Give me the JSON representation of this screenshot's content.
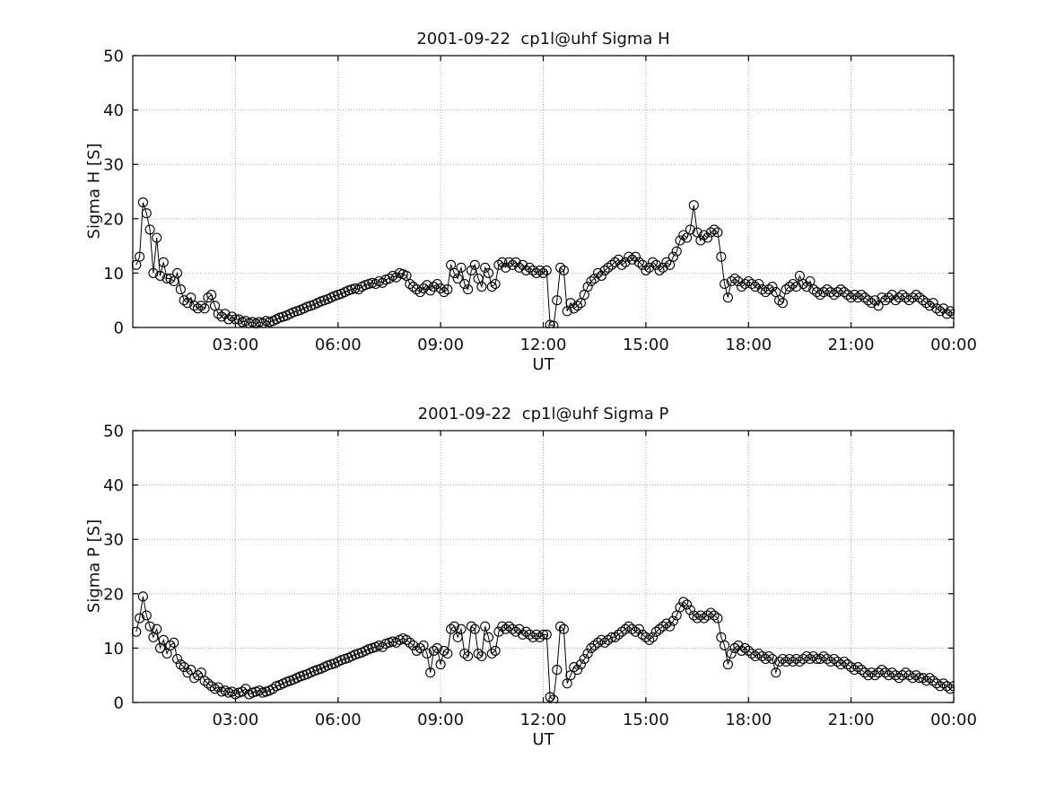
{
  "styles": {
    "background": "#ffffff",
    "grid_color": "#999999",
    "axis_color": "#000000",
    "marker_color": "#000000",
    "text_color": "#111111"
  },
  "chart_data": [
    {
      "id": "sigma-h",
      "type": "scatter",
      "title": "2001-09-22  cp1l@uhf Sigma H",
      "xlabel": "UT",
      "ylabel": "Sigma H [S]",
      "xlim": [
        0,
        24
      ],
      "ylim": [
        0,
        50
      ],
      "xticks": [
        3,
        6,
        9,
        12,
        15,
        18,
        21,
        24
      ],
      "xtick_labels": [
        "03:00",
        "06:00",
        "09:00",
        "12:00",
        "15:00",
        "18:00",
        "21:00",
        "00:00"
      ],
      "yticks": [
        0,
        10,
        20,
        30,
        40,
        50
      ],
      "grid": true,
      "legend": "none",
      "marker": "open-circle",
      "x_start": 0.1,
      "x_step": 0.1,
      "values": [
        11.5,
        13.0,
        23.0,
        21.0,
        18.0,
        10.0,
        16.5,
        9.5,
        12.0,
        9.0,
        9.0,
        8.5,
        10.0,
        7.0,
        5.0,
        4.5,
        5.5,
        4.0,
        3.5,
        4.0,
        3.5,
        5.5,
        6.0,
        4.0,
        2.5,
        2.0,
        2.5,
        1.5,
        2.0,
        1.5,
        1.5,
        1.0,
        1.2,
        0.8,
        1.0,
        0.7,
        1.0,
        0.8,
        1.2,
        1.0,
        1.2,
        1.5,
        1.8,
        2.0,
        2.2,
        2.5,
        2.8,
        3.0,
        3.2,
        3.5,
        3.8,
        4.0,
        4.2,
        4.5,
        4.8,
        5.0,
        5.2,
        5.5,
        5.8,
        6.0,
        6.2,
        6.5,
        6.8,
        7.0,
        7.2,
        7.0,
        7.5,
        7.8,
        8.0,
        8.2,
        8.0,
        8.5,
        8.2,
        8.8,
        9.0,
        9.5,
        9.2,
        10.0,
        9.8,
        9.5,
        8.0,
        7.5,
        7.0,
        6.5,
        7.2,
        7.8,
        6.8,
        7.5,
        8.0,
        7.2,
        6.5,
        7.0,
        11.5,
        10.0,
        9.0,
        11.0,
        8.0,
        7.0,
        10.5,
        11.5,
        9.0,
        7.5,
        11.0,
        10.0,
        7.5,
        8.0,
        11.5,
        12.0,
        11.0,
        12.0,
        11.5,
        12.0,
        11.0,
        11.5,
        10.5,
        11.0,
        10.5,
        10.0,
        10.5,
        10.0,
        10.5,
        0.5,
        0.3,
        5.0,
        11.0,
        10.5,
        3.0,
        4.5,
        3.5,
        4.0,
        4.5,
        6.0,
        7.5,
        8.5,
        9.0,
        10.0,
        9.5,
        10.5,
        11.0,
        11.5,
        12.0,
        12.5,
        11.5,
        12.0,
        13.0,
        12.5,
        13.0,
        12.0,
        11.5,
        10.5,
        11.0,
        12.0,
        11.5,
        10.5,
        11.0,
        12.0,
        11.5,
        13.0,
        14.0,
        16.0,
        17.0,
        16.5,
        18.0,
        22.5,
        17.5,
        16.0,
        17.0,
        16.5,
        17.5,
        18.0,
        17.5,
        13.0,
        8.0,
        5.5,
        8.5,
        9.0,
        8.5,
        7.5,
        8.0,
        8.5,
        8.0,
        7.5,
        8.0,
        7.0,
        6.5,
        7.0,
        7.5,
        6.5,
        5.0,
        4.5,
        7.0,
        7.5,
        8.0,
        7.5,
        9.5,
        8.0,
        7.5,
        8.5,
        7.0,
        6.5,
        6.0,
        6.5,
        7.0,
        6.5,
        6.0,
        6.5,
        7.0,
        6.5,
        6.0,
        5.5,
        6.0,
        5.5,
        6.0,
        5.5,
        5.0,
        4.5,
        5.0,
        4.0,
        5.5,
        5.0,
        5.5,
        6.0,
        5.0,
        5.5,
        6.0,
        5.5,
        5.0,
        5.5,
        6.0,
        5.5,
        5.0,
        4.5,
        4.0,
        4.5,
        3.5,
        3.0,
        3.5,
        2.5,
        3.0,
        2.5
      ]
    },
    {
      "id": "sigma-p",
      "type": "scatter",
      "title": "2001-09-22  cp1l@uhf Sigma P",
      "xlabel": "UT",
      "ylabel": "Sigma P [S]",
      "xlim": [
        0,
        24
      ],
      "ylim": [
        0,
        50
      ],
      "xticks": [
        3,
        6,
        9,
        12,
        15,
        18,
        21,
        24
      ],
      "xtick_labels": [
        "03:00",
        "06:00",
        "09:00",
        "12:00",
        "15:00",
        "18:00",
        "21:00",
        "00:00"
      ],
      "yticks": [
        0,
        10,
        20,
        30,
        40,
        50
      ],
      "grid": true,
      "legend": "none",
      "marker": "open-circle",
      "x_start": 0.1,
      "x_step": 0.1,
      "values": [
        13.0,
        15.5,
        19.5,
        16.0,
        14.0,
        12.0,
        13.5,
        10.0,
        11.5,
        9.0,
        10.5,
        11.0,
        8.0,
        7.0,
        6.5,
        5.5,
        6.0,
        4.5,
        5.0,
        5.5,
        4.0,
        3.5,
        3.0,
        2.5,
        2.8,
        2.0,
        2.2,
        1.8,
        2.0,
        1.5,
        1.8,
        2.0,
        2.5,
        1.5,
        1.8,
        2.0,
        2.2,
        1.8,
        2.0,
        2.2,
        2.5,
        3.0,
        3.2,
        3.5,
        3.8,
        4.0,
        4.2,
        4.5,
        4.8,
        5.0,
        5.2,
        5.5,
        5.8,
        6.0,
        6.2,
        6.5,
        6.8,
        7.0,
        7.2,
        7.5,
        7.8,
        8.0,
        8.2,
        8.5,
        8.8,
        9.0,
        9.2,
        9.5,
        9.8,
        10.0,
        10.2,
        10.5,
        10.2,
        10.8,
        11.0,
        11.2,
        11.0,
        11.5,
        11.8,
        11.5,
        11.0,
        10.5,
        9.5,
        10.0,
        10.5,
        9.0,
        5.5,
        9.5,
        10.0,
        7.0,
        9.5,
        9.0,
        13.5,
        14.0,
        12.0,
        13.5,
        9.0,
        8.5,
        14.0,
        13.5,
        9.0,
        8.5,
        14.0,
        12.0,
        9.0,
        9.5,
        13.0,
        14.0,
        13.5,
        14.0,
        13.5,
        13.0,
        13.5,
        12.5,
        13.0,
        12.5,
        12.0,
        12.5,
        12.0,
        12.5,
        12.5,
        1.0,
        0.5,
        6.0,
        14.0,
        13.5,
        3.5,
        5.0,
        6.5,
        6.0,
        7.0,
        8.0,
        9.0,
        10.0,
        10.5,
        11.0,
        11.5,
        11.0,
        11.5,
        12.0,
        12.0,
        12.5,
        13.0,
        13.5,
        14.0,
        13.5,
        13.0,
        13.5,
        12.5,
        12.0,
        11.5,
        12.0,
        13.0,
        13.5,
        14.0,
        14.5,
        14.0,
        15.0,
        16.0,
        17.5,
        18.5,
        18.0,
        17.0,
        16.0,
        15.5,
        16.0,
        15.5,
        16.0,
        16.5,
        16.0,
        15.5,
        12.0,
        10.5,
        7.0,
        9.0,
        10.0,
        10.5,
        9.5,
        10.0,
        9.5,
        9.0,
        8.5,
        9.0,
        8.5,
        8.0,
        8.5,
        8.0,
        5.5,
        7.5,
        8.0,
        7.5,
        8.0,
        7.5,
        8.0,
        7.5,
        8.0,
        8.5,
        8.0,
        8.5,
        8.0,
        8.0,
        8.5,
        8.0,
        7.5,
        8.0,
        7.5,
        7.0,
        7.5,
        7.0,
        6.5,
        6.0,
        6.5,
        6.0,
        5.5,
        5.0,
        5.5,
        5.0,
        5.5,
        6.0,
        5.5,
        5.0,
        5.5,
        5.0,
        4.5,
        5.0,
        5.5,
        5.0,
        4.5,
        5.0,
        4.5,
        4.5,
        4.0,
        4.5,
        4.0,
        3.5,
        3.0,
        3.5,
        3.0,
        2.5,
        3.0
      ]
    }
  ]
}
